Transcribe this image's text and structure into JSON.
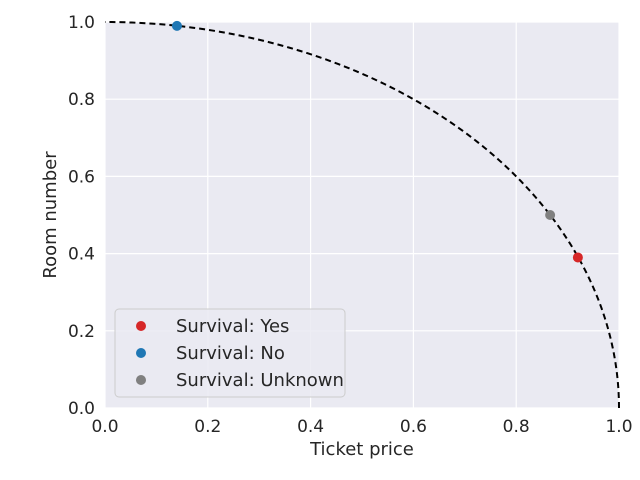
{
  "chart_data": {
    "type": "scatter",
    "title": "",
    "xlabel": "Ticket price",
    "ylabel": "Room number",
    "xlim": [
      0.0,
      1.0
    ],
    "ylim": [
      0.0,
      1.0
    ],
    "xticks": [
      "0.0",
      "0.2",
      "0.4",
      "0.6",
      "0.8",
      "1.0"
    ],
    "yticks": [
      "0.0",
      "0.2",
      "0.4",
      "0.6",
      "0.8",
      "1.0"
    ],
    "grid": true,
    "legend_position": "lower-left",
    "series": [
      {
        "name": "Survival: Yes",
        "color": "#d62728",
        "x": [
          0.92
        ],
        "y": [
          0.39
        ]
      },
      {
        "name": "Survival: No",
        "color": "#1f77b4",
        "x": [
          0.14
        ],
        "y": [
          0.99
        ]
      },
      {
        "name": "Survival: Unknown",
        "color": "#808080",
        "x": [
          0.866
        ],
        "y": [
          0.5
        ]
      }
    ],
    "annotations": [
      {
        "type": "dashed-curve",
        "description": "unit circle arc x^2 + y^2 = 1",
        "color": "#000000"
      }
    ],
    "colors": {
      "plot_background": "#eaeaf2",
      "grid": "#ffffff"
    }
  }
}
